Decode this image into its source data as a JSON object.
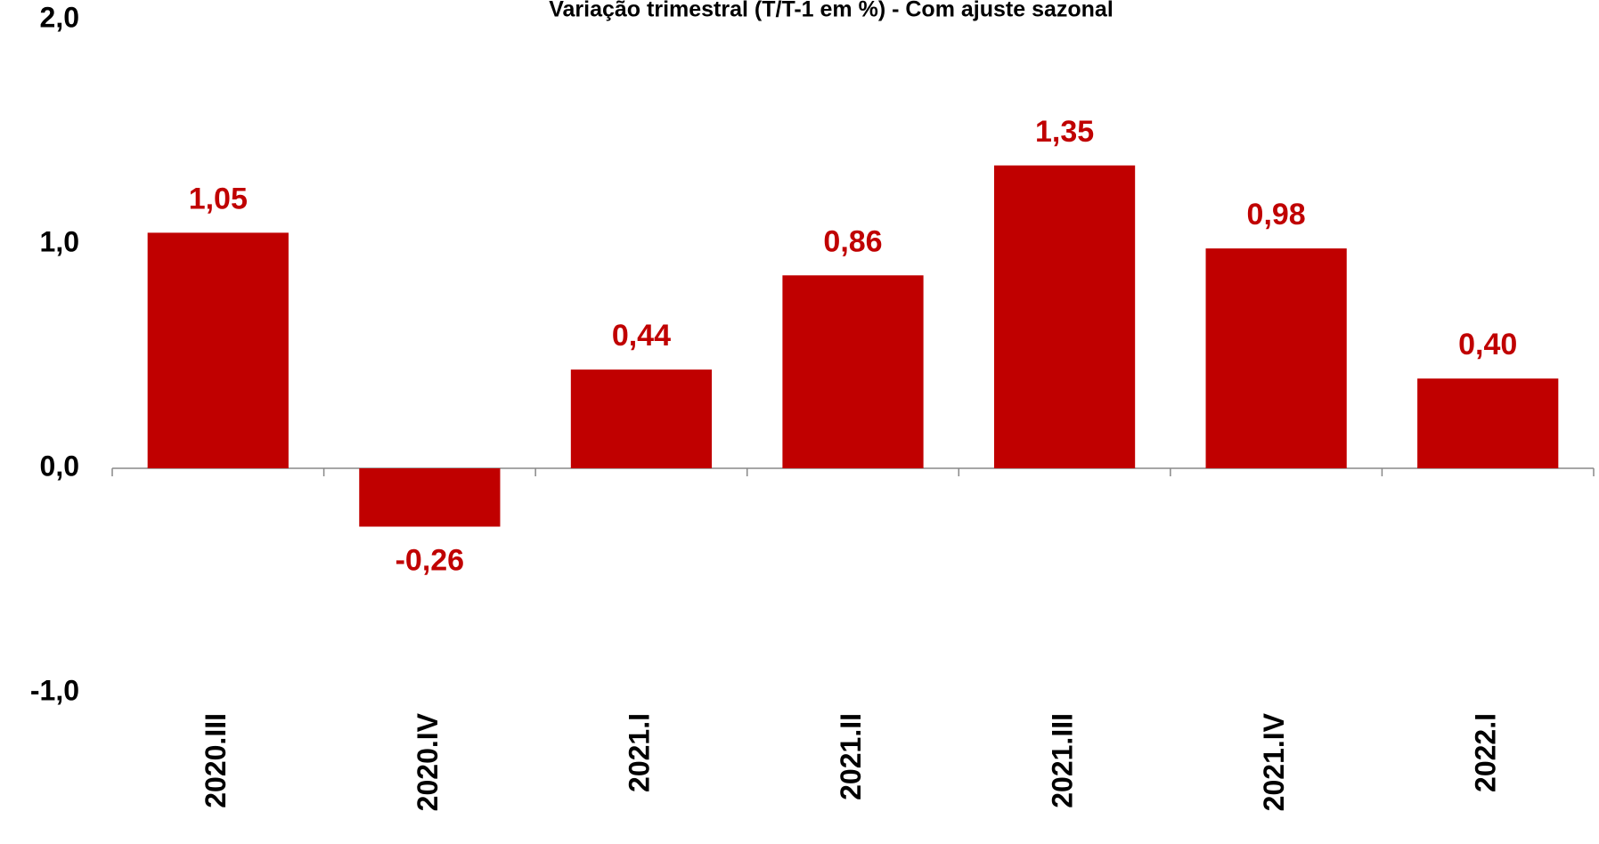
{
  "chart_data": {
    "type": "bar",
    "title": "Variação trimestral (T/T-1 em %) - Com ajuste sazonal",
    "categories": [
      "2020.III",
      "2020.IV",
      "2021.I",
      "2021.II",
      "2021.III",
      "2021.IV",
      "2022.I"
    ],
    "values": [
      1.05,
      -0.26,
      0.44,
      0.86,
      1.35,
      0.98,
      0.4
    ],
    "value_labels": [
      "1,05",
      "-0,26",
      "0,44",
      "0,86",
      "1,35",
      "0,98",
      "0,40"
    ],
    "color": "#c00000",
    "ylim": [
      -1,
      2
    ],
    "yticks": [
      {
        "value": -1,
        "label": "-1,0"
      },
      {
        "value": 0,
        "label": "0,0"
      },
      {
        "value": 1,
        "label": "1,0"
      },
      {
        "value": 2,
        "label": "2,0"
      }
    ],
    "grid": false
  }
}
